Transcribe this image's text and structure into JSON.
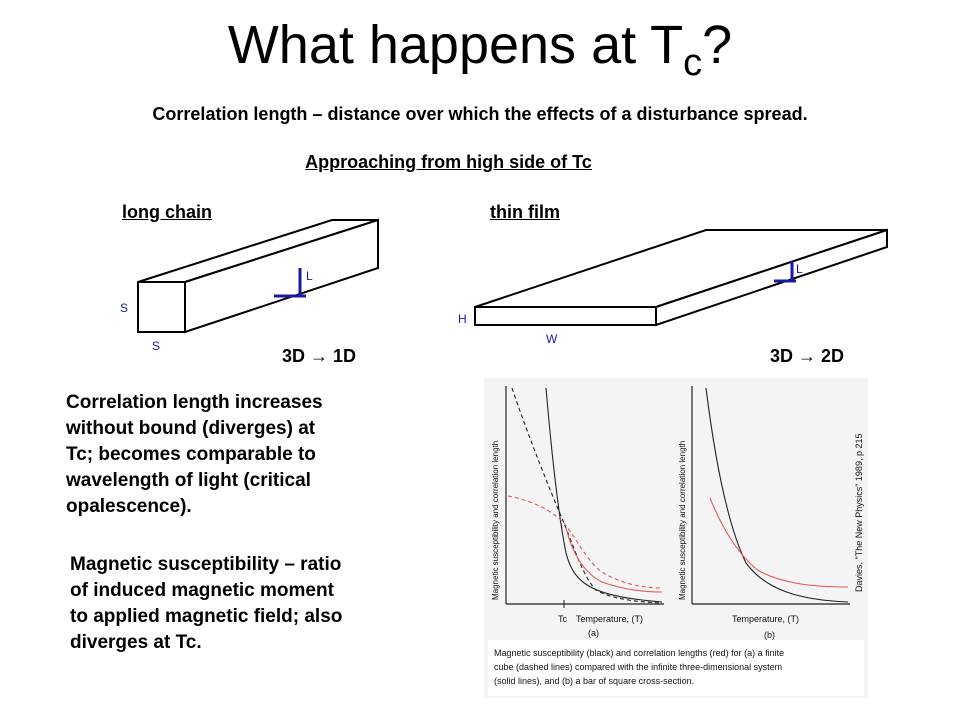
{
  "title": {
    "main": "What happens at T",
    "sub": "c",
    "suffix": "?"
  },
  "definition": "Correlation length – distance over which the effects of a disturbance spread.",
  "subhead": "Approaching from high side of Tc",
  "long_chain": {
    "label": "long chain",
    "dimension": "3D → 1D",
    "side_label_1": "S",
    "side_label_2": "S",
    "axis_label": "L"
  },
  "thin_film": {
    "label": "thin film",
    "dimension": "3D → 2D",
    "height_label": "H",
    "width_label": "W",
    "axis_label": "L"
  },
  "paragraph_1": [
    "Correlation length increases",
    "without bound (diverges) at",
    "Tc; becomes comparable to",
    "wavelength of light (critical",
    "opalescence)."
  ],
  "paragraph_2": [
    "Magnetic susceptibility – ratio",
    "of induced magnetic moment",
    "to applied magnetic field; also",
    "diverges at Tc."
  ],
  "figure": {
    "ylabel_a": "Magnetic susceptibility and correlation length",
    "ylabel_b": "Magnetic susceptibility and correlation length",
    "tc_label": "Tc",
    "xlabel_a": "Temperature, (T)",
    "xlabel_b": "Temperature, (T)",
    "panel_a": "(a)",
    "panel_b": "(b)",
    "source": "Davies, \"The New Physics\" 1989, p 215",
    "caption": [
      "Magnetic susceptibility (black) and correlation lengths (red) for (a) a finite",
      "cube (dashed lines) compared with the infinite three-dimensional system",
      "(solid lines), and (b) a bar of square cross-section."
    ]
  },
  "colors": {
    "curve_red": "#e05a5a",
    "axis_blue": "#1a1aa0"
  }
}
